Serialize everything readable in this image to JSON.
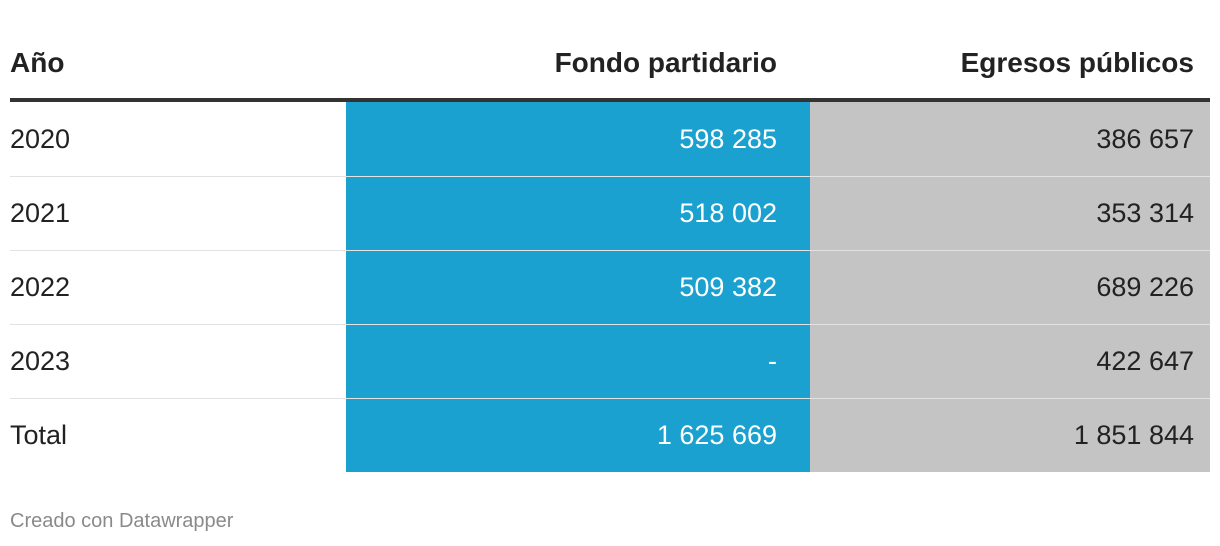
{
  "table": {
    "header": [
      "Año",
      "Fondo partidario",
      "Egresos públicos"
    ],
    "rows": [
      [
        "2020",
        "598 285",
        "386 657"
      ],
      [
        "2021",
        "518 002",
        "353 314"
      ],
      [
        "2022",
        "509 382",
        "689 226"
      ],
      [
        "2023",
        "-",
        "422 647"
      ],
      [
        "Total",
        "1 625 669",
        "1 851 844"
      ]
    ]
  },
  "footer": "Creado con Datawrapper"
}
